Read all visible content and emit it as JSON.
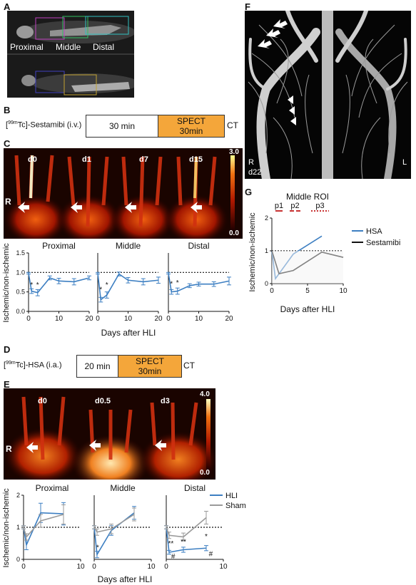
{
  "panels": {
    "A": {
      "label": "A",
      "regions": [
        "Proximal",
        "Middle",
        "Distal"
      ]
    },
    "B": {
      "label": "B",
      "tracer": "Sestamibi (i.v.)",
      "iso": "99m",
      "tc": "Tc",
      "uptake": "30 min",
      "spect_line1": "SPECT",
      "spect_line2": "30min",
      "ct": "CT"
    },
    "C": {
      "label": "C",
      "timepoints": [
        "d0",
        "d1",
        "d7",
        "d15"
      ],
      "side": "R",
      "scale_max": "3.0",
      "scale_min": "0.0"
    },
    "D": {
      "label": "D",
      "tracer": "HSA (i.a.)",
      "iso": "99m",
      "tc": "Tc",
      "uptake": "20 min",
      "spect_line1": "SPECT",
      "spect_line2": "30min",
      "ct": "CT"
    },
    "E": {
      "label": "E",
      "timepoints": [
        "d0",
        "d0.5",
        "d3"
      ],
      "side": "R",
      "scale_max": "4.0",
      "scale_min": "0.0"
    },
    "F": {
      "label": "F",
      "side_right": "R",
      "day": "d22",
      "side_left": "L"
    },
    "G": {
      "label": "G"
    }
  },
  "colors": {
    "hsa": "#3d7fc2",
    "sestamibi": "#111111",
    "sham": "#9a9a9a",
    "period_red": "#c83232",
    "orange": "#f4a63a"
  },
  "chart_data": [
    {
      "id": "C-proximal",
      "type": "line",
      "title": "Proximal",
      "xlabel": "",
      "ylabel": "Ischemic/non-ischemic",
      "xlim": [
        0,
        20
      ],
      "ylim": [
        0,
        1.5
      ],
      "xticks": [
        0,
        10,
        20
      ],
      "yticks": [
        0.0,
        0.5,
        1.0,
        1.5
      ],
      "reference_line": 1.0,
      "series": [
        {
          "values_x": [
            0,
            1,
            3,
            7,
            10,
            15,
            20
          ],
          "values_y": [
            0.98,
            0.52,
            0.48,
            0.86,
            0.78,
            0.76,
            0.86
          ],
          "err": [
            0.02,
            0.06,
            0.08,
            0.05,
            0.07,
            0.08,
            0.05
          ],
          "color": "#3d7fc2"
        }
      ],
      "annotations": [
        {
          "x": 1,
          "y": 0.62,
          "text": "*"
        },
        {
          "x": 3,
          "y": 0.62,
          "text": "*"
        }
      ]
    },
    {
      "id": "C-middle",
      "type": "line",
      "title": "Middle",
      "xlabel": "",
      "ylabel": "",
      "xlim": [
        0,
        20
      ],
      "ylim": [
        0,
        1.5
      ],
      "xticks": [
        0,
        10,
        20
      ],
      "yticks": [],
      "reference_line": 1.0,
      "series": [
        {
          "values_x": [
            0,
            1,
            3,
            7,
            10,
            15,
            20
          ],
          "values_y": [
            0.98,
            0.3,
            0.42,
            0.96,
            0.8,
            0.76,
            0.8
          ],
          "err": [
            0.02,
            0.06,
            0.08,
            0.05,
            0.07,
            0.08,
            0.08
          ],
          "color": "#3d7fc2"
        }
      ],
      "annotations": [
        {
          "x": 1,
          "y": 0.5,
          "text": "*"
        },
        {
          "x": 3,
          "y": 0.62,
          "text": "*"
        }
      ]
    },
    {
      "id": "C-distal",
      "type": "line",
      "title": "Distal",
      "xlabel": "",
      "ylabel": "",
      "xlim": [
        0,
        20
      ],
      "ylim": [
        0,
        1.5
      ],
      "xticks": [
        0,
        10,
        20
      ],
      "yticks": [],
      "reference_line": 1.0,
      "series": [
        {
          "values_x": [
            0,
            1,
            3,
            7,
            10,
            15,
            20
          ],
          "values_y": [
            0.98,
            0.5,
            0.52,
            0.66,
            0.7,
            0.7,
            0.78
          ],
          "err": [
            0.02,
            0.06,
            0.08,
            0.05,
            0.05,
            0.06,
            0.1
          ],
          "color": "#3d7fc2"
        }
      ],
      "annotations": [
        {
          "x": 1,
          "y": 0.65,
          "text": "*"
        },
        {
          "x": 3,
          "y": 0.68,
          "text": "*"
        }
      ]
    },
    {
      "id": "E-proximal",
      "type": "line",
      "title": "Proximal",
      "xlabel": "",
      "ylabel": "Ischemic/non-ischemic",
      "xlim": [
        0,
        10
      ],
      "ylim": [
        0,
        2
      ],
      "xticks": [
        0,
        10
      ],
      "yticks": [
        0,
        1,
        2
      ],
      "reference_line": 1.0,
      "series": [
        {
          "name": "HLI",
          "values_x": [
            0,
            0.5,
            3,
            7
          ],
          "values_y": [
            1.0,
            0.45,
            1.45,
            1.42
          ],
          "err": [
            0.05,
            0.15,
            0.3,
            0.35
          ],
          "color": "#3d7fc2"
        },
        {
          "name": "Sham",
          "values_x": [
            0,
            0.5,
            3,
            7
          ],
          "values_y": [
            1.0,
            0.7,
            1.2,
            1.4
          ],
          "err": [
            0.05,
            0.1,
            0.2,
            0.3
          ],
          "color": "#9a9a9a"
        }
      ],
      "annotations": []
    },
    {
      "id": "E-middle",
      "type": "line",
      "title": "Middle",
      "xlabel": "",
      "ylabel": "",
      "xlim": [
        0,
        10
      ],
      "ylim": [
        0,
        2
      ],
      "xticks": [
        0,
        10
      ],
      "yticks": [],
      "reference_line": 1.0,
      "series": [
        {
          "name": "HLI",
          "values_x": [
            0,
            0.5,
            3,
            7
          ],
          "values_y": [
            1.0,
            0.15,
            0.9,
            1.45
          ],
          "err": [
            0.05,
            0.1,
            0.15,
            0.2
          ],
          "color": "#3d7fc2"
        },
        {
          "name": "Sham",
          "values_x": [
            0,
            0.5,
            3,
            7
          ],
          "values_y": [
            1.0,
            0.85,
            0.95,
            1.4
          ],
          "err": [
            0.05,
            0.1,
            0.15,
            0.2
          ],
          "color": "#9a9a9a"
        }
      ],
      "annotations": [
        {
          "x": 0.6,
          "y": 0.3,
          "text": "*"
        }
      ]
    },
    {
      "id": "E-distal",
      "type": "line",
      "title": "Distal",
      "xlabel": "",
      "ylabel": "",
      "xlim": [
        0,
        10
      ],
      "ylim": [
        0,
        2
      ],
      "xticks": [
        0,
        10
      ],
      "yticks": [],
      "reference_line": 1.0,
      "series": [
        {
          "name": "HLI",
          "values_x": [
            0,
            0.5,
            3,
            7
          ],
          "values_y": [
            1.0,
            0.22,
            0.3,
            0.35
          ],
          "err": [
            0.05,
            0.06,
            0.08,
            0.08
          ],
          "color": "#3d7fc2"
        },
        {
          "name": "Sham",
          "values_x": [
            0,
            0.5,
            3,
            7
          ],
          "values_y": [
            1.0,
            0.75,
            0.7,
            1.3
          ],
          "err": [
            0.05,
            0.1,
            0.12,
            0.2
          ],
          "color": "#9a9a9a"
        }
      ],
      "annotations": [
        {
          "x": 0.8,
          "y": 0.42,
          "text": "**"
        },
        {
          "x": 3,
          "y": 0.48,
          "text": "**"
        },
        {
          "x": 7,
          "y": 0.65,
          "text": "*"
        },
        {
          "x": 1.2,
          "y": 0.02,
          "text": "#"
        },
        {
          "x": 7.8,
          "y": 0.1,
          "text": "#"
        }
      ],
      "legend": [
        "HLI",
        "Sham"
      ]
    },
    {
      "id": "G",
      "type": "line",
      "title": "Middle ROI",
      "xlabel": "Days after HLI",
      "ylabel": "Ischemic/non-ischemic",
      "xlim": [
        0,
        10
      ],
      "ylim": [
        0,
        2
      ],
      "xticks": [
        0,
        5,
        10
      ],
      "yticks": [
        0,
        1,
        2
      ],
      "reference_line": 1.0,
      "series": [
        {
          "name": "HSA",
          "values_x": [
            0,
            0.5,
            3,
            7
          ],
          "values_y": [
            1.0,
            0.15,
            0.9,
            1.45
          ],
          "color": "#3d7fc2"
        },
        {
          "name": "Sestamibi",
          "values_x": [
            0,
            1,
            3,
            7,
            10
          ],
          "values_y": [
            1.0,
            0.3,
            0.4,
            0.96,
            0.8
          ],
          "color": "#111111"
        }
      ],
      "periods": [
        {
          "label": "p1",
          "start": 0.5,
          "end": 1.5
        },
        {
          "label": "p2",
          "start": 2.5,
          "end": 4.0
        },
        {
          "label": "p3",
          "start": 5.5,
          "end": 8.0
        }
      ],
      "legend": [
        "HSA",
        "Sestamibi"
      ]
    }
  ],
  "common": {
    "x_axis_label": "Days after HLI",
    "y_axis_label": "Ischemic/non-ischemic",
    "legend_hli": "HLI",
    "legend_sham": "Sham"
  }
}
